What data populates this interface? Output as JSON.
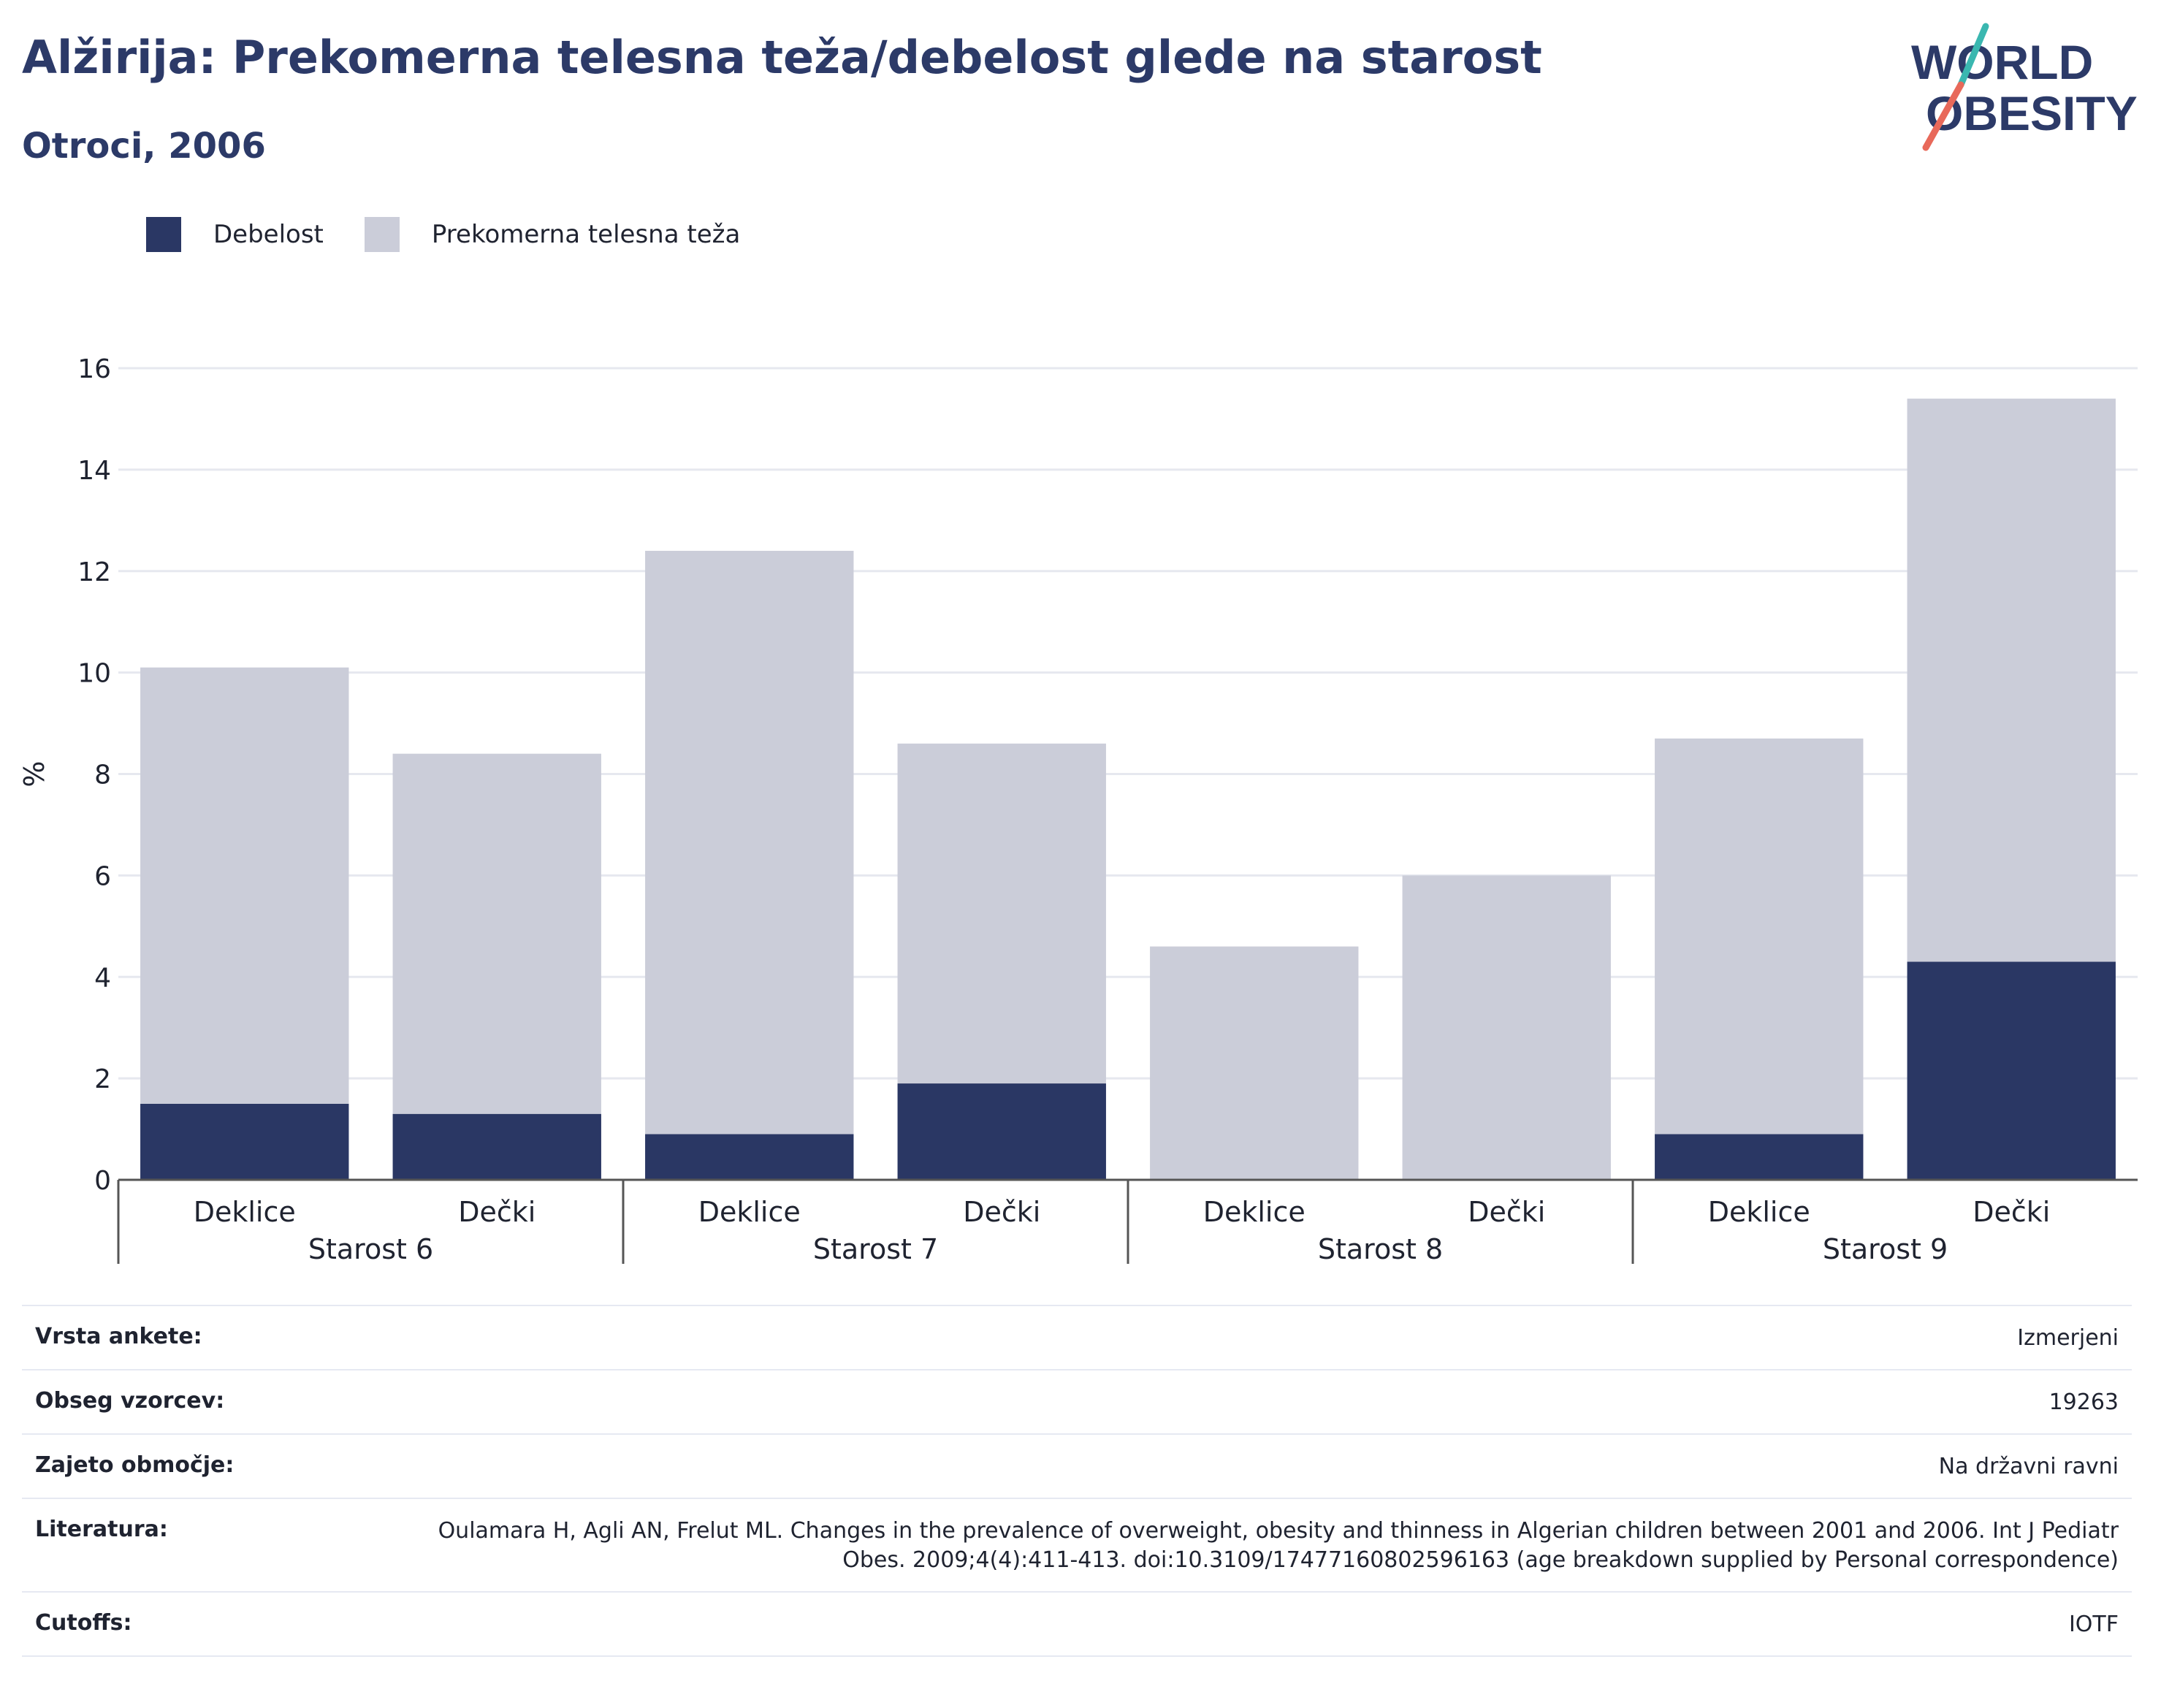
{
  "title": "Alžirija: Prekomerna telesna teža/debelost glede na starost",
  "subtitle": "Otroci, 2006",
  "logo": {
    "line1": "WORLD",
    "line2": "OBESITY"
  },
  "colors": {
    "obesity": "#2a3764",
    "overweight": "#cbcdd9",
    "title": "#2c3a68",
    "logo_teal": "#3ab7b0",
    "logo_red": "#e8695a"
  },
  "legend": [
    {
      "label": "Debelost",
      "color": "#2a3764"
    },
    {
      "label": "Prekomerna telesna teža",
      "color": "#cbcdd9"
    }
  ],
  "chart_data": {
    "type": "bar",
    "stacked": true,
    "ylabel": "%",
    "ylim": [
      0,
      16
    ],
    "yticks": [
      0,
      2,
      4,
      6,
      8,
      10,
      12,
      14,
      16
    ],
    "grid": true,
    "legend_position": "top-left",
    "groups": [
      "Starost 6",
      "Starost 7",
      "Starost 8",
      "Starost 9"
    ],
    "categories": [
      "Deklice",
      "Dečki",
      "Deklice",
      "Dečki",
      "Deklice",
      "Dečki",
      "Deklice",
      "Dečki"
    ],
    "series": [
      {
        "name": "Debelost",
        "values": [
          1.5,
          1.3,
          0.9,
          1.9,
          0.0,
          0.0,
          0.9,
          4.3
        ]
      },
      {
        "name": "Prekomerna telesna teža",
        "values": [
          8.6,
          7.1,
          11.5,
          6.7,
          4.6,
          6.0,
          7.8,
          11.1
        ]
      }
    ]
  },
  "meta": [
    {
      "label": "Vrsta ankete:",
      "value": "Izmerjeni"
    },
    {
      "label": "Obseg vzorcev:",
      "value": "19263"
    },
    {
      "label": "Zajeto območje:",
      "value": "Na državni ravni"
    },
    {
      "label": "Literatura:",
      "value": "Oulamara H, Agli AN, Frelut ML. Changes in the prevalence of overweight, obesity and thinness in Algerian children between 2001 and 2006. Int J Pediatr Obes. 2009;4(4):411-413. doi:10.3109/17477160802596163 (age breakdown supplied by Personal correspondence)"
    },
    {
      "label": "Cutoffs:",
      "value": "IOTF"
    }
  ]
}
